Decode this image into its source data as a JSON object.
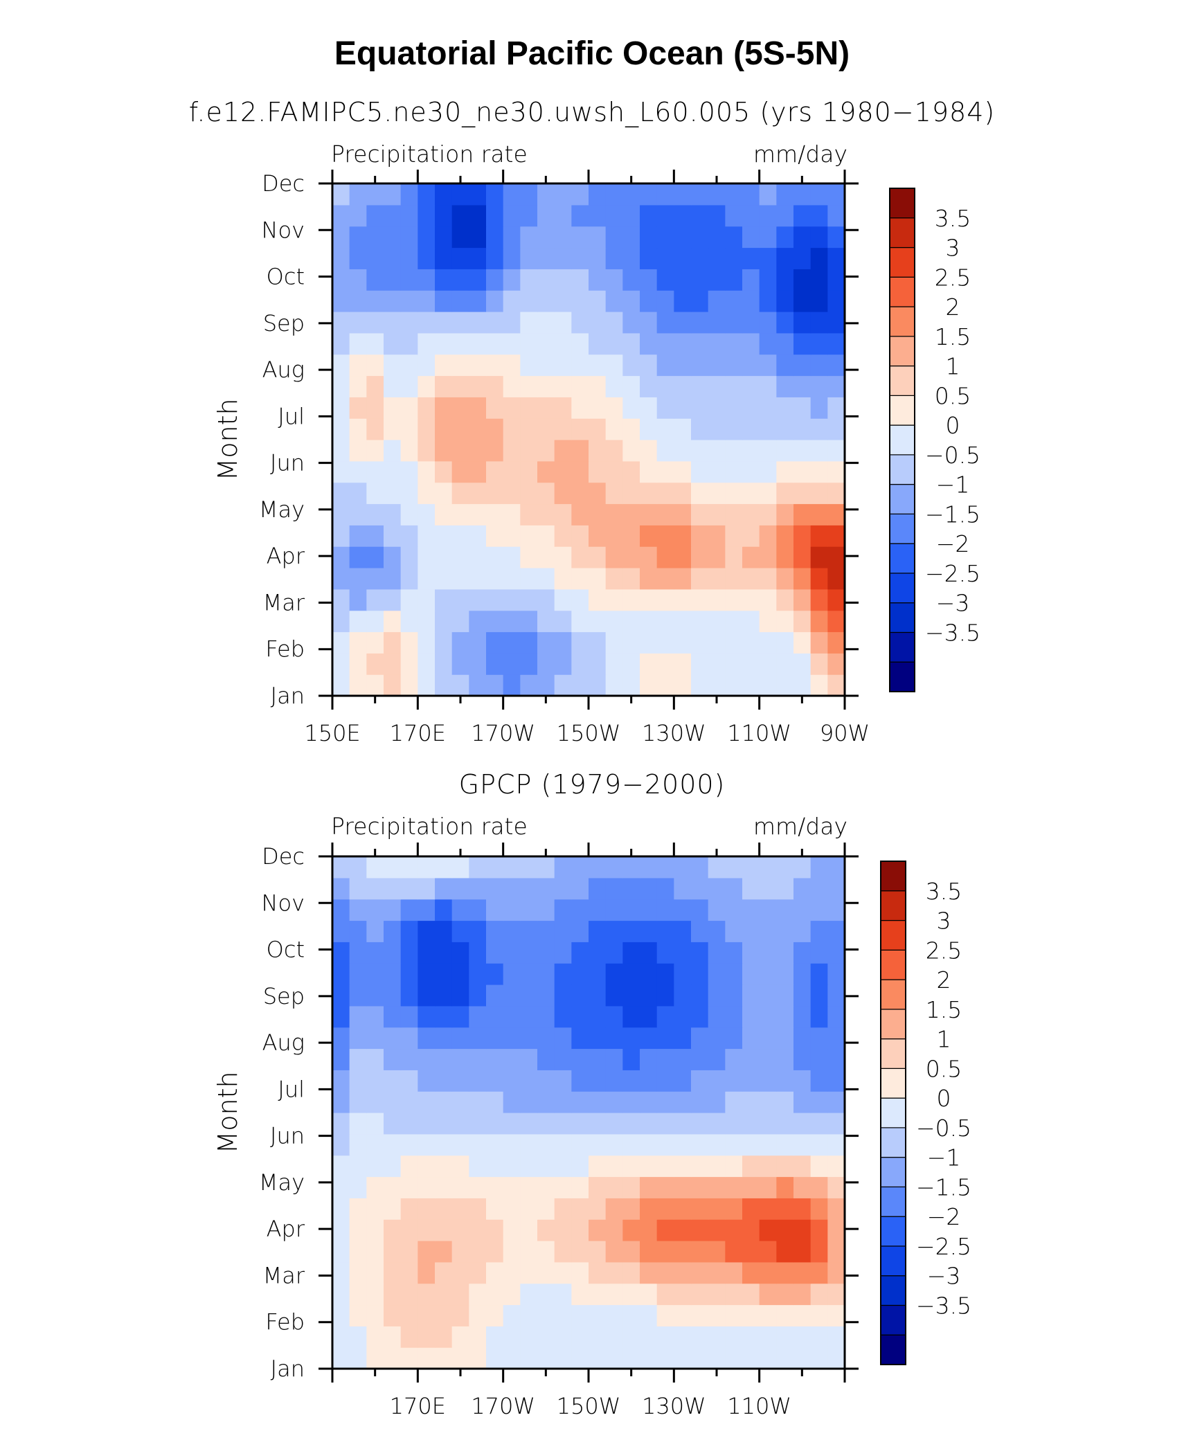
{
  "figure": {
    "title": "Equatorial Pacific Ocean (5S-5N)"
  },
  "colors": {
    "levels": [
      "#000080",
      "#0014A6",
      "#0030CB",
      "#0F45E6",
      "#2A62F6",
      "#5A87FA",
      "#88A8FB",
      "#B8CCFC",
      "#DCE9FD",
      "#FEEBDD",
      "#FDD0BB",
      "#FCAE8F",
      "#FA8A60",
      "#F5623A",
      "#E6401C",
      "#C82A0F",
      "#8A0D06"
    ]
  },
  "chart_data": [
    {
      "type": "heatmap",
      "title": "f.e12.FAMIPC5.ne30_ne30.uwsh_L60.005 (yrs 1980−1984)",
      "left_label": "Precipitation rate",
      "right_label": "mm/day",
      "xlabel": "",
      "ylabel": "Month",
      "x_range": [
        150,
        270
      ],
      "y_range": [
        0,
        11
      ],
      "x_ticks": [
        150,
        170,
        190,
        210,
        230,
        250,
        270
      ],
      "x_tick_labels": [
        "150E",
        "170E",
        "170W",
        "150W",
        "130W",
        "110W",
        "90W"
      ],
      "y_tick_labels": [
        "Jan",
        "Feb",
        "Mar",
        "Apr",
        "May",
        "Jun",
        "Jul",
        "Aug",
        "Sep",
        "Oct",
        "Nov",
        "Dec"
      ],
      "colorbar_labels": [
        "3.5",
        "3",
        "2.5",
        "2",
        "1.5",
        "1",
        "0.5",
        "0",
        "−0.5",
        "−1",
        "−1.5",
        "−2",
        "−2.5",
        "−3",
        "−3.5"
      ],
      "blobs": [
        {
          "lon": 158,
          "month": 9.5,
          "value": -1.1,
          "sx": 8,
          "sy": 1.5
        },
        {
          "lon": 180,
          "month": 9.8,
          "value": -2.3,
          "sx": 8,
          "sy": 1.2
        },
        {
          "lon": 235,
          "month": 9.3,
          "value": -1.8,
          "sx": 14,
          "sy": 1.6
        },
        {
          "lon": 264,
          "month": 8.8,
          "value": -2.6,
          "sx": 8,
          "sy": 1.5
        },
        {
          "lon": 200,
          "month": 10.6,
          "value": -0.9,
          "sx": 25,
          "sy": 1.0
        },
        {
          "lon": 160,
          "month": 10.9,
          "value": 0.5,
          "sx": 6,
          "sy": 0.4
        },
        {
          "lon": 158,
          "month": 6.3,
          "value": 1.3,
          "sx": 4,
          "sy": 0.9
        },
        {
          "lon": 180,
          "month": 5.8,
          "value": 1.8,
          "sx": 8,
          "sy": 1.2
        },
        {
          "lon": 205,
          "month": 5.0,
          "value": 1.5,
          "sx": 12,
          "sy": 1.3
        },
        {
          "lon": 230,
          "month": 3.2,
          "value": 2.0,
          "sx": 15,
          "sy": 0.9
        },
        {
          "lon": 262,
          "month": 3.1,
          "value": 2.4,
          "sx": 8,
          "sy": 1.0
        },
        {
          "lon": 268,
          "month": 2.0,
          "value": 2.2,
          "sx": 4,
          "sy": 1.4
        },
        {
          "lon": 158,
          "month": 2.8,
          "value": -1.2,
          "sx": 6,
          "sy": 0.8
        },
        {
          "lon": 192,
          "month": 0.8,
          "value": -1.4,
          "sx": 10,
          "sy": 0.8
        },
        {
          "lon": 163,
          "month": 0.8,
          "value": 1.3,
          "sx": 6,
          "sy": 0.8
        },
        {
          "lon": 228,
          "month": 0.3,
          "value": 0.9,
          "sx": 6,
          "sy": 0.5
        }
      ]
    },
    {
      "type": "heatmap",
      "title": "GPCP (1979−2000)",
      "left_label": "Precipitation rate",
      "right_label": "mm/day",
      "xlabel": "",
      "ylabel": "Month",
      "x_range": [
        150,
        270
      ],
      "y_range": [
        0,
        11
      ],
      "x_ticks": [
        170,
        190,
        210,
        230,
        250
      ],
      "x_tick_labels": [
        "170E",
        "170W",
        "150W",
        "130W",
        "110W"
      ],
      "y_tick_labels": [
        "Jan",
        "Feb",
        "Mar",
        "Apr",
        "May",
        "Jun",
        "Jul",
        "Aug",
        "Sep",
        "Oct",
        "Nov",
        "Dec"
      ],
      "colorbar_labels": [
        "3.5",
        "3",
        "2.5",
        "2",
        "1.5",
        "1",
        "0.5",
        "0",
        "−0.5",
        "−1",
        "−1.5",
        "−2",
        "−2.5",
        "−3",
        "−3.5"
      ],
      "blobs": [
        {
          "lon": 175,
          "month": 8.8,
          "value": -2.1,
          "sx": 9,
          "sy": 1.2
        },
        {
          "lon": 152,
          "month": 8.0,
          "value": -1.5,
          "sx": 5,
          "sy": 1.8
        },
        {
          "lon": 222,
          "month": 8.5,
          "value": -1.6,
          "sx": 18,
          "sy": 1.6
        },
        {
          "lon": 266,
          "month": 8.0,
          "value": -1.3,
          "sx": 6,
          "sy": 2.0
        },
        {
          "lon": 210,
          "month": 7.0,
          "value": -0.8,
          "sx": 40,
          "sy": 2.5
        },
        {
          "lon": 172,
          "month": 10.8,
          "value": 1.0,
          "sx": 10,
          "sy": 0.5
        },
        {
          "lon": 235,
          "month": 2.9,
          "value": 2.1,
          "sx": 18,
          "sy": 1.0
        },
        {
          "lon": 260,
          "month": 2.8,
          "value": 2.1,
          "sx": 9,
          "sy": 1.1
        },
        {
          "lon": 172,
          "month": 1.8,
          "value": 1.3,
          "sx": 12,
          "sy": 1.6
        },
        {
          "lon": 156,
          "month": 6.5,
          "value": 0.7,
          "sx": 3,
          "sy": 1.2
        },
        {
          "lon": 210,
          "month": 3.5,
          "value": 0.9,
          "sx": 40,
          "sy": 1.2
        }
      ]
    }
  ]
}
